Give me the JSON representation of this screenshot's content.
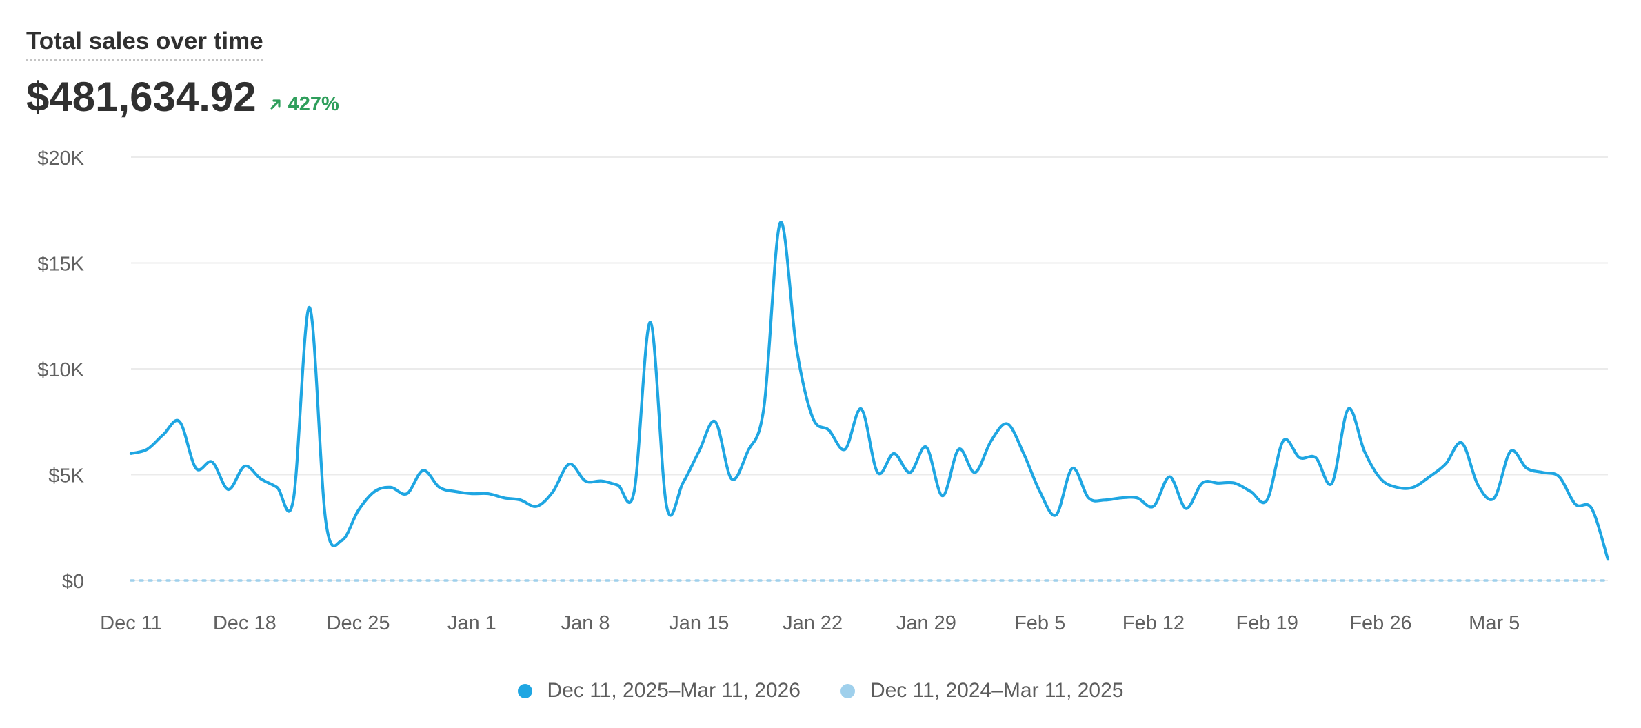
{
  "header": {
    "title": "Total sales over time",
    "total": "$481,634.92",
    "delta": "427%",
    "delta_color": "#2e9e5b",
    "delta_icon": "arrow-up-right-icon"
  },
  "legend": [
    {
      "label": "Dec 11, 2025–Mar 11, 2026",
      "color": "#1fa6e2"
    },
    {
      "label": "Dec 11, 2024–Mar 11, 2025",
      "color": "#9fd0ec"
    }
  ],
  "chart_data": {
    "type": "line",
    "x_start": "Dec 11",
    "x_end": "Mar 11",
    "x_ticks": [
      "Dec 11",
      "Dec 18",
      "Dec 25",
      "Jan 1",
      "Jan 8",
      "Jan 15",
      "Jan 22",
      "Jan 29",
      "Feb 5",
      "Feb 12",
      "Feb 19",
      "Feb 26",
      "Mar 5"
    ],
    "y_ticks": [
      "$0",
      "$5K",
      "$10K",
      "$15K",
      "$20K"
    ],
    "y_tick_values": [
      0,
      5000,
      10000,
      15000,
      20000
    ],
    "ylim": [
      0,
      20000
    ],
    "grid": true,
    "legend_position": "bottom",
    "series": [
      {
        "name": "Dec 11, 2025–Mar 11, 2026",
        "style": "solid",
        "color": "#1fa6e2",
        "values": [
          6000,
          6200,
          6900,
          7500,
          5300,
          5600,
          4300,
          5400,
          4800,
          4400,
          3800,
          12900,
          2800,
          1900,
          3300,
          4200,
          4400,
          4100,
          5200,
          4400,
          4200,
          4100,
          4100,
          3900,
          3800,
          3500,
          4200,
          5500,
          4700,
          4700,
          4500,
          4200,
          12200,
          3500,
          4600,
          6100,
          7500,
          4800,
          6100,
          8200,
          16900,
          11000,
          7700,
          7100,
          6200,
          8100,
          5100,
          6000,
          5100,
          6300,
          4000,
          6200,
          5100,
          6600,
          7400,
          6000,
          4200,
          3100,
          5300,
          3900,
          3800,
          3900,
          3900,
          3500,
          4900,
          3400,
          4600,
          4600,
          4600,
          4200,
          3800,
          6600,
          5800,
          5800,
          4600,
          8100,
          6100,
          4800,
          4400,
          4400,
          4900,
          5500,
          6500,
          4500,
          3900,
          6100,
          5300,
          5100,
          4900,
          3600,
          3400,
          1000
        ]
      },
      {
        "name": "Dec 11, 2024–Mar 11, 2025",
        "style": "dashed",
        "color": "#9fd0ec",
        "values": [
          0,
          0,
          0,
          0,
          0,
          0,
          0,
          0,
          0,
          0,
          0,
          0,
          0,
          0,
          0,
          0,
          0,
          0,
          0,
          0,
          0,
          0,
          0,
          0,
          0,
          0,
          0,
          0,
          0,
          0,
          0,
          0,
          0,
          0,
          0,
          0,
          0,
          0,
          0,
          0,
          0,
          0,
          0,
          0,
          0,
          0,
          0,
          0,
          0,
          0,
          0,
          0,
          0,
          0,
          0,
          0,
          0,
          0,
          0,
          0,
          0,
          0,
          0,
          0,
          0,
          0,
          0,
          0,
          0,
          0,
          0,
          0,
          0,
          0,
          0,
          0,
          0,
          0,
          0,
          0,
          0,
          0,
          0,
          0,
          0,
          0,
          0,
          0,
          0,
          0,
          0,
          0
        ]
      }
    ]
  }
}
